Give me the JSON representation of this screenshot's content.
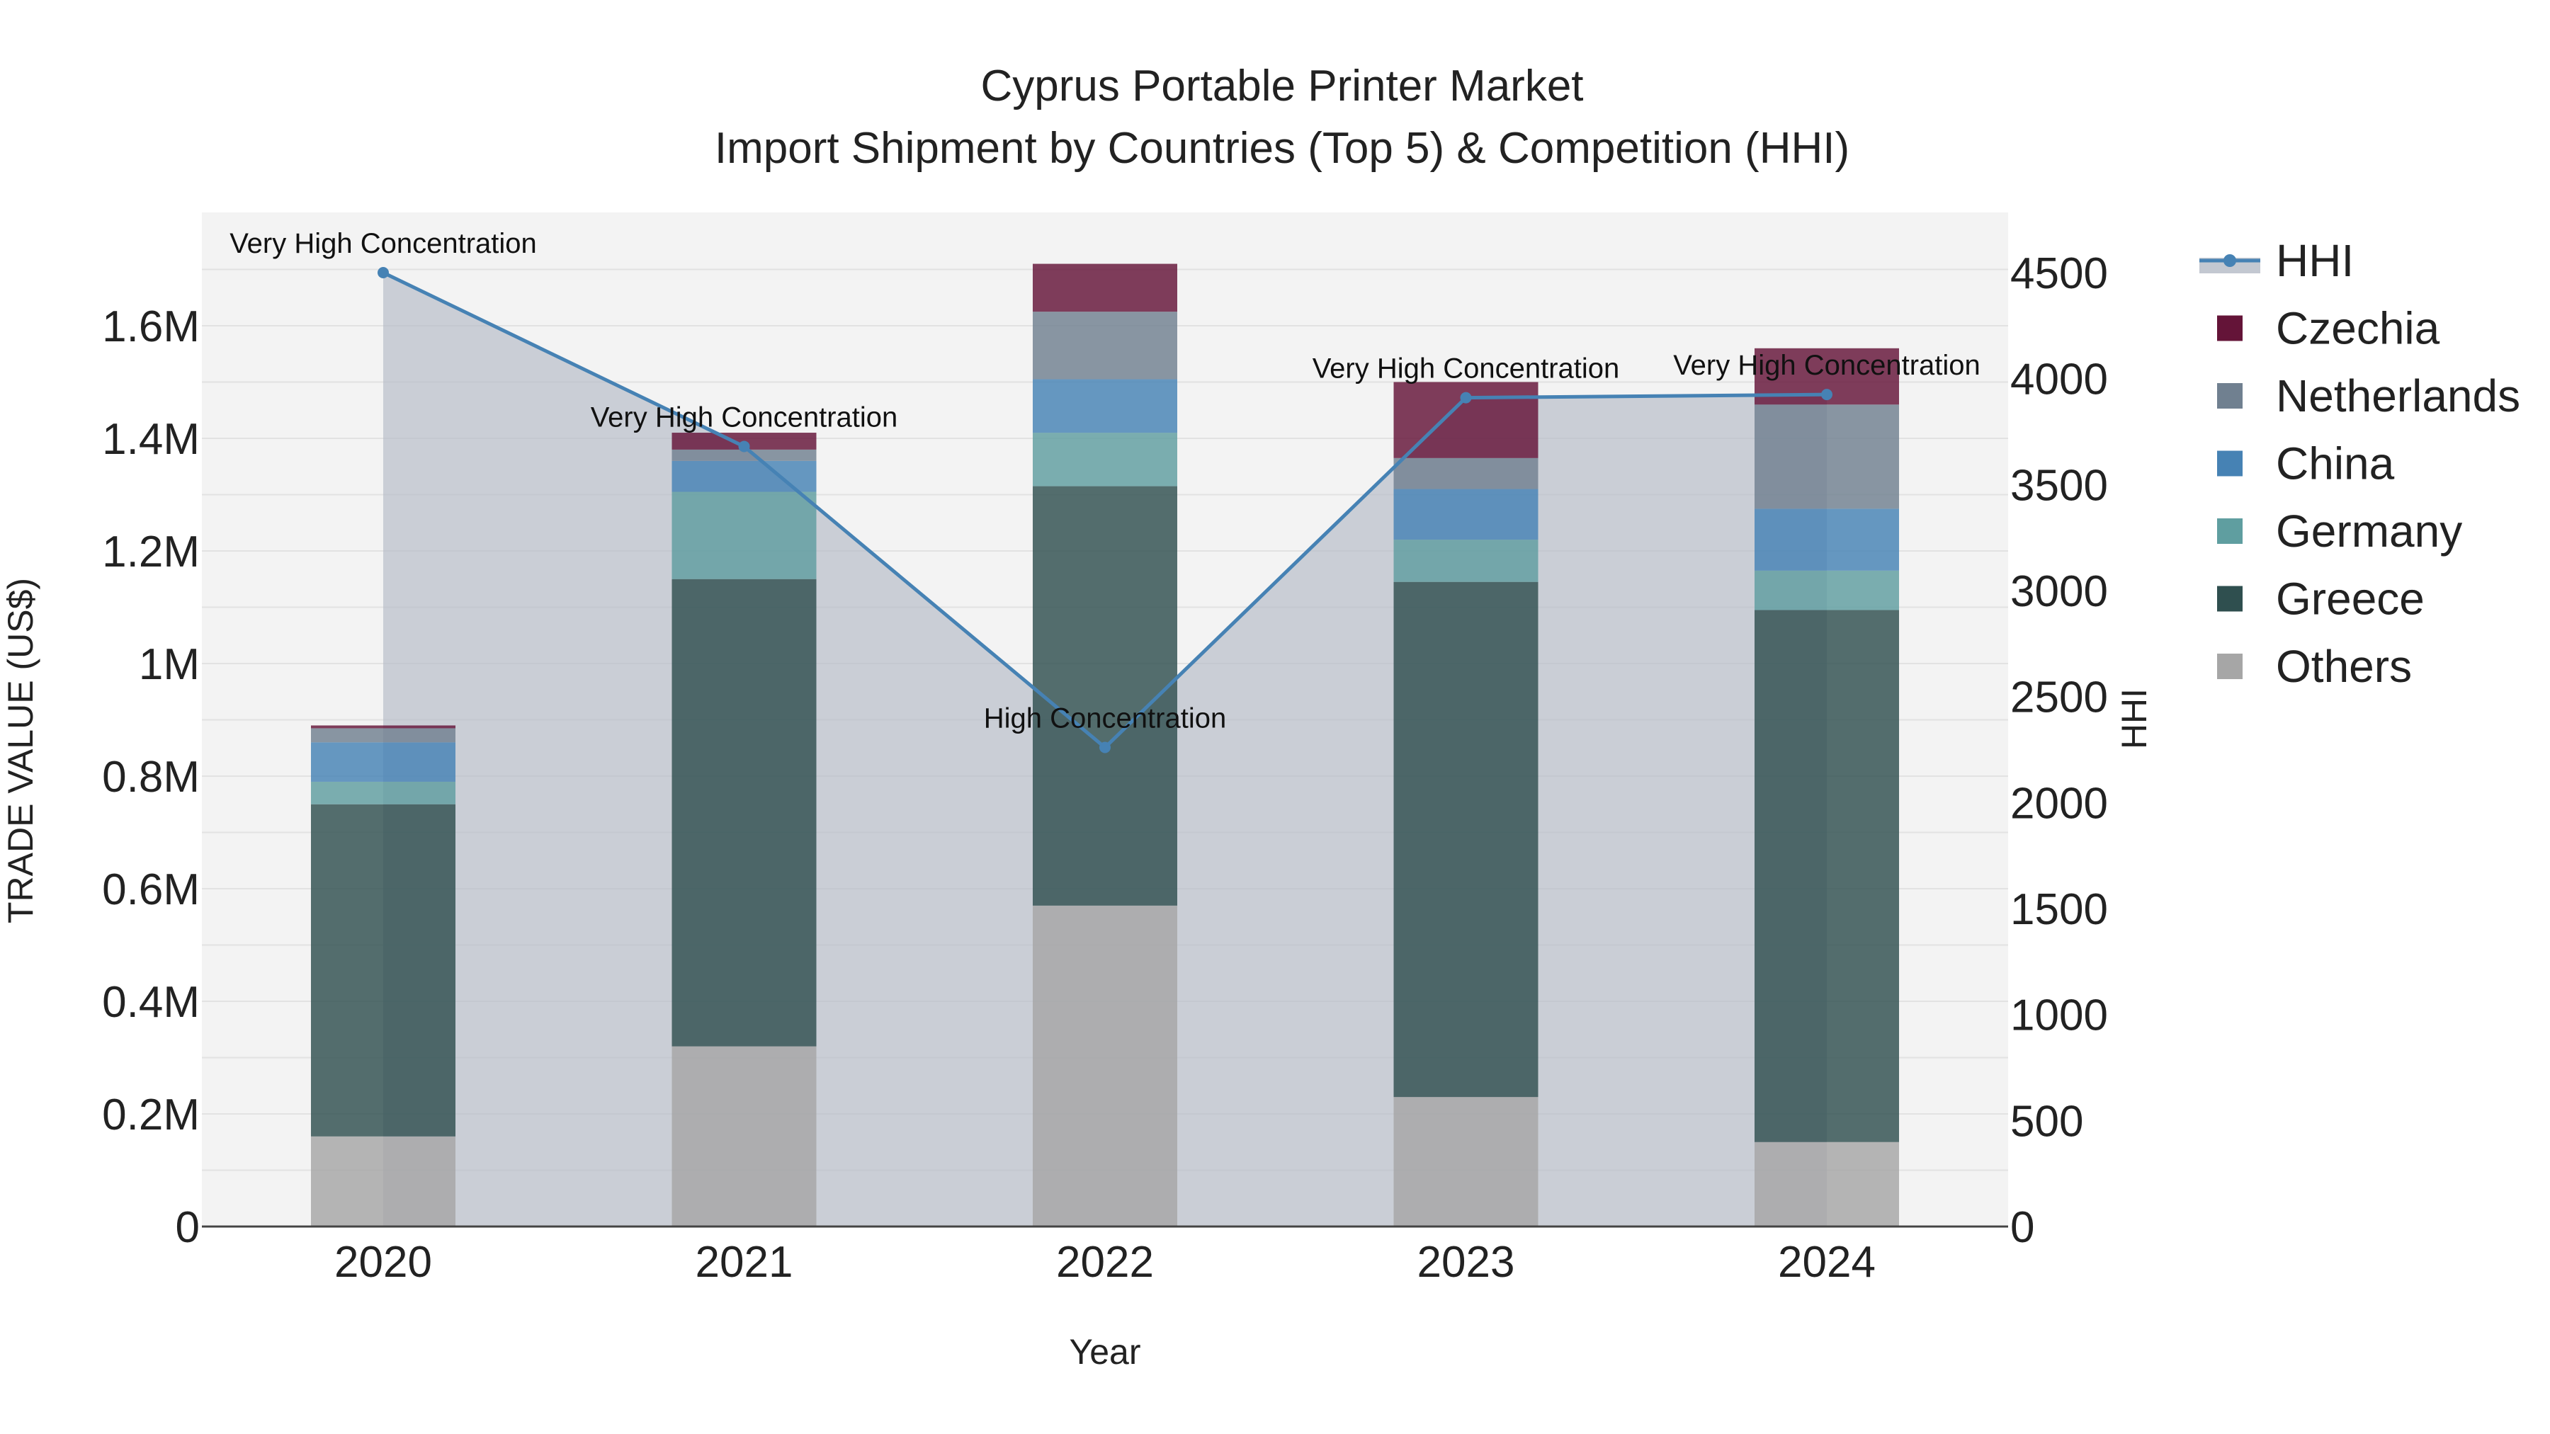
{
  "chart_data": {
    "type": "bar",
    "title": "Cyprus Portable Printer Market",
    "subtitle": "Import Shipment by Countries (Top 5) & Competition (HHI)",
    "xlabel": "Year",
    "ylabel": "TRADE VALUE (US$)",
    "y2label": "HHI",
    "categories": [
      "2020",
      "2021",
      "2022",
      "2023",
      "2024"
    ],
    "ylim": [
      0,
      1800000
    ],
    "y2lim": [
      0,
      4800
    ],
    "y_ticks": [
      0,
      200000,
      400000,
      600000,
      800000,
      1000000,
      1200000,
      1400000,
      1600000
    ],
    "y_tick_labels": [
      "0",
      "0.2M",
      "0.4M",
      "0.6M",
      "0.8M",
      "1M",
      "1.2M",
      "1.4M",
      "1.6M"
    ],
    "y2_ticks": [
      0,
      500,
      1000,
      1500,
      2000,
      2500,
      3000,
      3500,
      4000,
      4500
    ],
    "y2_tick_labels": [
      "0",
      "500",
      "1000",
      "1500",
      "2000",
      "2500",
      "3000",
      "3500",
      "4000",
      "4500"
    ],
    "series": [
      {
        "name": "Others",
        "color": "#a6a6a6",
        "values": [
          160000,
          320000,
          570000,
          230000,
          150000
        ]
      },
      {
        "name": "Greece",
        "color": "#2f4f4f",
        "values": [
          590000,
          830000,
          745000,
          915000,
          945000
        ]
      },
      {
        "name": "Germany",
        "color": "#5f9ea0",
        "values": [
          40000,
          155000,
          95000,
          75000,
          70000
        ]
      },
      {
        "name": "China",
        "color": "#4682b4",
        "values": [
          70000,
          55000,
          95000,
          90000,
          110000
        ]
      },
      {
        "name": "Netherlands",
        "color": "#708090",
        "values": [
          25000,
          20000,
          120000,
          55000,
          185000
        ]
      },
      {
        "name": "Czechia",
        "color": "#641438",
        "values": [
          5000,
          30000,
          85000,
          135000,
          100000
        ]
      }
    ],
    "hhi": {
      "name": "HHI",
      "color": "#4682b4",
      "values": [
        4500,
        3680,
        2260,
        3910,
        3925
      ],
      "labels": [
        "Very High Concentration",
        "Very High Concentration",
        "High Concentration",
        "Very High Concentration",
        "Very High Concentration"
      ]
    },
    "legend": {
      "position": "top-right",
      "items": [
        "HHI",
        "Czechia",
        "Netherlands",
        "China",
        "Germany",
        "Greece",
        "Others"
      ]
    }
  }
}
